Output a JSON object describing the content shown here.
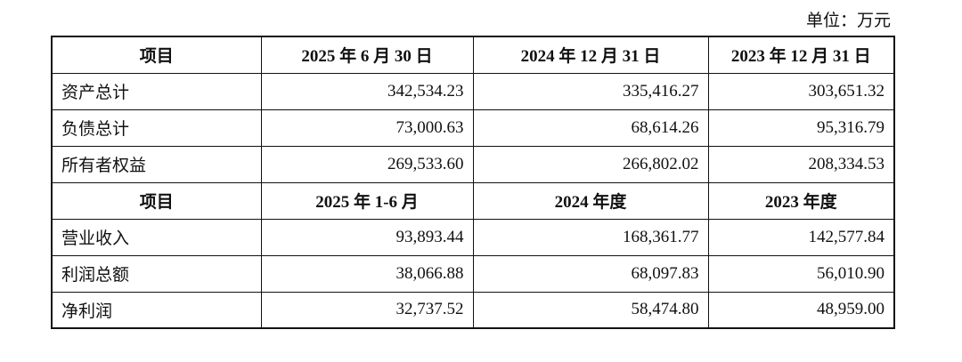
{
  "unit": "单位：万元",
  "table": {
    "sections": [
      {
        "header": [
          "项目",
          "2025 年 6 月 30 日",
          "2024 年 12 月 31 日",
          "2023 年 12 月 31 日"
        ],
        "rows": [
          [
            "资产总计",
            "342,534.23",
            "335,416.27",
            "303,651.32"
          ],
          [
            "负债总计",
            "73,000.63",
            "68,614.26",
            "95,316.79"
          ],
          [
            "所有者权益",
            "269,533.60",
            "266,802.02",
            "208,334.53"
          ]
        ]
      },
      {
        "header": [
          "项目",
          "2025 年 1-6 月",
          "2024 年度",
          "2023 年度"
        ],
        "rows": [
          [
            "营业收入",
            "93,893.44",
            "168,361.77",
            "142,577.84"
          ],
          [
            "利润总额",
            "38,066.88",
            "68,097.83",
            "56,010.90"
          ],
          [
            "净利润",
            "32,737.52",
            "58,474.80",
            "48,959.00"
          ]
        ]
      }
    ]
  }
}
